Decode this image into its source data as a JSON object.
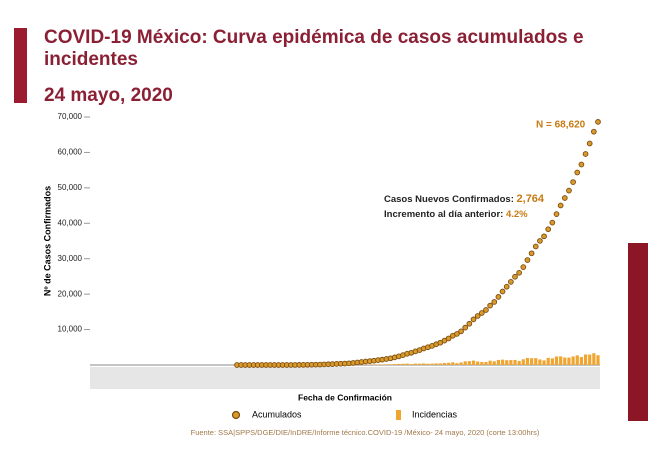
{
  "chart_data": {
    "type": "line_bar",
    "title_line1": "COVID-19 México: Curva epidémica de casos acumulados e",
    "title_line2": "incidentes",
    "subtitle": "24 mayo, 2020",
    "y_axis_label": "Nº de Casos Confirmados",
    "x_axis_label": "Fecha de Confirmación",
    "annotation_total": "N = 68,620",
    "annotation_new_label": "Casos Nuevos Confirmados:",
    "annotation_new_value": "2,764",
    "annotation_increase_label": "Incremento al día anterior:",
    "annotation_increase_value": "4.2%",
    "source": "Fuente: SSA|SPPS/DGE/DIE/InDRE/Informe técnico.COVID-19 /México- 24 mayo, 2020 (corte 13:00hrs)",
    "ylim": [
      0,
      70000
    ],
    "yticks": [
      {
        "value": 10000,
        "label": "10,000"
      },
      {
        "value": 20000,
        "label": "20,000"
      },
      {
        "value": 30000,
        "label": "30,000"
      },
      {
        "value": 40000,
        "label": "40,000"
      },
      {
        "value": 50000,
        "label": "50,000"
      },
      {
        "value": 60000,
        "label": "60,000"
      },
      {
        "value": 70000,
        "label": "70,000"
      }
    ],
    "categories": [
      null,
      null,
      null,
      null,
      null,
      null,
      null,
      null,
      null,
      null,
      null,
      null,
      null,
      null,
      null,
      null,
      null,
      null,
      null,
      null,
      null,
      null,
      null,
      null,
      null,
      null,
      null,
      null,
      null,
      null,
      null,
      null,
      null,
      null,
      null,
      null,
      null,
      null,
      null,
      null,
      null,
      null,
      null,
      null,
      null,
      null,
      null,
      null,
      null,
      null,
      null,
      null,
      null,
      null,
      null,
      null,
      null,
      null,
      null,
      null,
      null,
      null,
      null,
      null,
      null,
      null,
      null,
      null,
      null,
      null,
      null,
      null,
      null,
      null,
      null,
      null,
      null,
      null,
      null,
      null,
      null,
      null,
      null,
      null,
      null,
      null,
      null,
      null
    ],
    "series": [
      {
        "name": "Acumulados",
        "color": "#d99a2b",
        "values": [
          1,
          2,
          4,
          5,
          5,
          5,
          5,
          5,
          6,
          7,
          7,
          7,
          8,
          12,
          15,
          26,
          41,
          53,
          82,
          93,
          118,
          164,
          203,
          251,
          316,
          367,
          405,
          475,
          585,
          717,
          848,
          993,
          1094,
          1215,
          1378,
          1510,
          1688,
          1890,
          2143,
          2439,
          2785,
          3181,
          3441,
          3844,
          4219,
          4661,
          5014,
          5399,
          5847,
          6297,
          6875,
          7497,
          8261,
          8772,
          9501,
          10544,
          11633,
          12872,
          13842,
          14677,
          15529,
          16752,
          17799,
          19224,
          20739,
          22088,
          23471,
          24905,
          26025,
          27634,
          29616,
          31522,
          33460,
          35022,
          36327,
          38324,
          40186,
          42595,
          45032,
          47144,
          49219,
          51633,
          54346,
          56594,
          59567,
          62527,
          65856,
          68620
        ]
      },
      {
        "name": "Incidencias",
        "color": "#f0a530",
        "values": [
          1,
          1,
          2,
          1,
          0,
          0,
          0,
          0,
          1,
          1,
          0,
          0,
          1,
          4,
          3,
          11,
          15,
          12,
          29,
          11,
          25,
          46,
          39,
          48,
          65,
          51,
          38,
          70,
          110,
          132,
          131,
          145,
          101,
          121,
          163,
          132,
          178,
          202,
          253,
          296,
          346,
          396,
          260,
          403,
          375,
          442,
          353,
          385,
          448,
          450,
          578,
          622,
          764,
          511,
          729,
          1043,
          1089,
          1239,
          970,
          835,
          852,
          1223,
          1047,
          1425,
          1515,
          1349,
          1383,
          1434,
          1120,
          1609,
          1982,
          1906,
          1938,
          1562,
          1305,
          1997,
          1862,
          2409,
          2437,
          2112,
          2075,
          2414,
          2713,
          2248,
          2973,
          2960,
          3329,
          2764
        ]
      }
    ]
  }
}
